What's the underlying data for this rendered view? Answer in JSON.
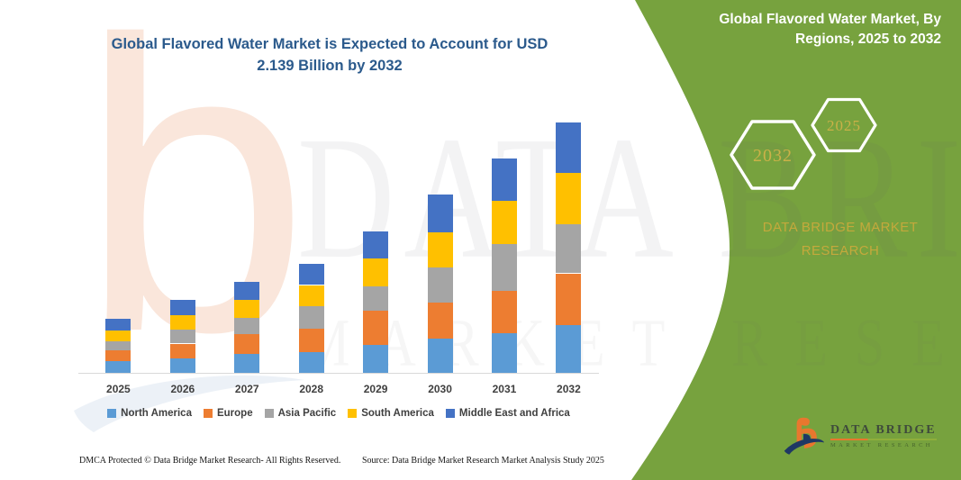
{
  "header": {
    "title_lines": [
      "Global Flavored Water Market is Expected to Account for USD",
      "2.139 Billion by 2032"
    ]
  },
  "chart_data": {
    "type": "bar",
    "stacked": true,
    "title": "Global Flavored Water Market is Expected to Account for USD 2.139 Billion by 2032",
    "units": "USD Billion (segment values estimated from bar heights; 2032 total = 2.139)",
    "categories": [
      "2025",
      "2026",
      "2027",
      "2028",
      "2029",
      "2030",
      "2031",
      "2032"
    ],
    "series": [
      {
        "name": "North America",
        "color": "#5B9BD5",
        "values": [
          0.1,
          0.12,
          0.16,
          0.18,
          0.24,
          0.29,
          0.34,
          0.41
        ]
      },
      {
        "name": "Europe",
        "color": "#ED7D31",
        "values": [
          0.09,
          0.13,
          0.17,
          0.2,
          0.29,
          0.31,
          0.36,
          0.44
        ]
      },
      {
        "name": "Asia Pacific",
        "color": "#A5A5A5",
        "values": [
          0.08,
          0.12,
          0.14,
          0.19,
          0.21,
          0.3,
          0.4,
          0.42
        ]
      },
      {
        "name": "South America",
        "color": "#FFC000",
        "values": [
          0.09,
          0.12,
          0.15,
          0.18,
          0.24,
          0.3,
          0.37,
          0.44
        ]
      },
      {
        "name": "Middle East and Africa",
        "color": "#4472C4",
        "values": [
          0.1,
          0.13,
          0.16,
          0.18,
          0.23,
          0.32,
          0.36,
          0.43
        ]
      }
    ],
    "totals": [
      0.46,
      0.62,
      0.78,
      0.93,
      1.21,
      1.52,
      1.83,
      2.14
    ],
    "ylim": [
      0,
      2.3
    ],
    "grid": false,
    "y_axis_visible": false,
    "legend_position": "bottom"
  },
  "panel": {
    "title_lines": [
      "Global Flavored Water Market, By",
      "Regions, 2025 to 2032"
    ],
    "hexagons": [
      {
        "label": "2032"
      },
      {
        "label": "2025"
      }
    ],
    "brand_lines": [
      "DATA BRIDGE MARKET",
      "RESEARCH"
    ],
    "logo": {
      "name": "DATA BRIDGE",
      "sub": "MARKET RESEARCH"
    }
  },
  "watermarks": {
    "letter": "b",
    "line1": "DATA BRIDGE",
    "line2": "MARKET RESEARCH"
  },
  "footer": {
    "dmca": "DMCA Protected © Data Bridge Market Research-  All Rights Reserved.",
    "source": "Source: Data Bridge Market Research  Market Analysis Study 2025"
  },
  "colors": {
    "panel_green": "#77A23E",
    "gold_text": "#C4A93C",
    "title_blue": "#2B5A8C",
    "axis_text": "#3F3F3F",
    "axis_line": "#D9D9D9",
    "logo_orange": "#E8772E",
    "logo_navy": "#1F3864",
    "watermark_peach": "#FAE6DB"
  }
}
